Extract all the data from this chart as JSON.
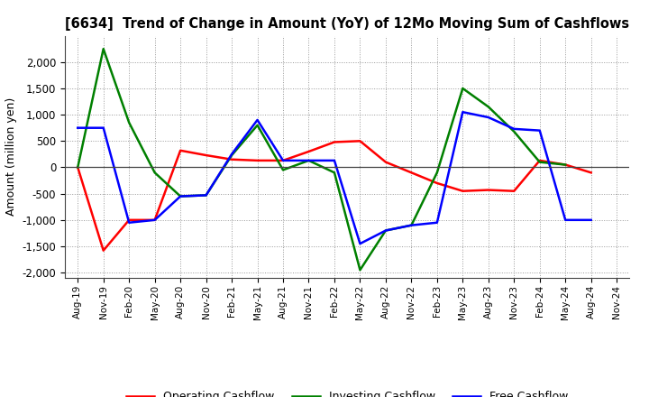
{
  "title": "[6634]  Trend of Change in Amount (YoY) of 12Mo Moving Sum of Cashflows",
  "ylabel": "Amount (million yen)",
  "x_labels": [
    "Aug-19",
    "Nov-19",
    "Feb-20",
    "May-20",
    "Aug-20",
    "Nov-20",
    "Feb-21",
    "May-21",
    "Aug-21",
    "Nov-21",
    "Feb-22",
    "May-22",
    "Aug-22",
    "Nov-22",
    "Feb-23",
    "May-23",
    "Aug-23",
    "Nov-23",
    "Feb-24",
    "May-24",
    "Aug-24",
    "Nov-24"
  ],
  "operating": [
    0,
    -1580,
    -1000,
    -1000,
    320,
    230,
    150,
    130,
    130,
    300,
    480,
    500,
    100,
    -100,
    -300,
    -450,
    -430,
    -450,
    130,
    50,
    -100,
    null
  ],
  "investing": [
    0,
    2250,
    850,
    -100,
    -550,
    -530,
    230,
    800,
    -50,
    130,
    -100,
    -1950,
    -1200,
    -1100,
    -100,
    1500,
    1150,
    680,
    100,
    50,
    null,
    null
  ],
  "free": [
    750,
    750,
    -1050,
    -1000,
    -550,
    -530,
    250,
    900,
    130,
    130,
    130,
    -1450,
    -1200,
    -1100,
    -1050,
    1050,
    950,
    730,
    700,
    -1000,
    -1000,
    null
  ],
  "operating_color": "#ff0000",
  "investing_color": "#008000",
  "free_color": "#0000ff",
  "ylim": [
    -2100,
    2500
  ],
  "yticks": [
    -2000,
    -1500,
    -1000,
    -500,
    0,
    500,
    1000,
    1500,
    2000
  ],
  "bg_color": "#ffffff",
  "grid_color": "#999999"
}
